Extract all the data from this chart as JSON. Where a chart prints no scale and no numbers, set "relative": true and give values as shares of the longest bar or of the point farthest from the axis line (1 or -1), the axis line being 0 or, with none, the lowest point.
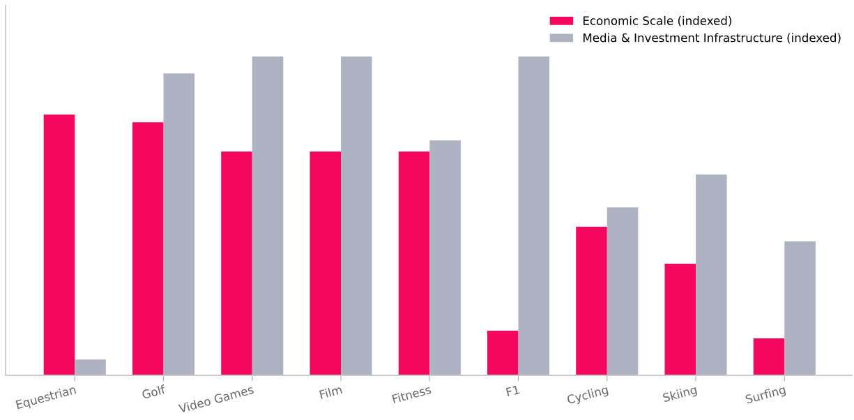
{
  "chart_data": {
    "type": "bar",
    "relative": true,
    "categories": [
      "Equestrian",
      "Golf",
      "Video Games",
      "Film",
      "Fitness",
      "F1",
      "Cycling",
      "Skiing",
      "Surfing"
    ],
    "series": [
      {
        "name": "Economic Scale (indexed)",
        "color": "#f50760",
        "values": [
          0.818,
          0.794,
          0.702,
          0.702,
          0.702,
          0.14,
          0.466,
          0.35,
          0.116
        ]
      },
      {
        "name": "Media & Investment Infrastructure (indexed)",
        "color": "#adb3c0",
        "values": [
          0.05,
          0.947,
          1,
          1,
          0.737,
          1,
          0.527,
          0.63,
          0.42
        ]
      }
    ],
    "legend": "top right",
    "grid": false
  }
}
